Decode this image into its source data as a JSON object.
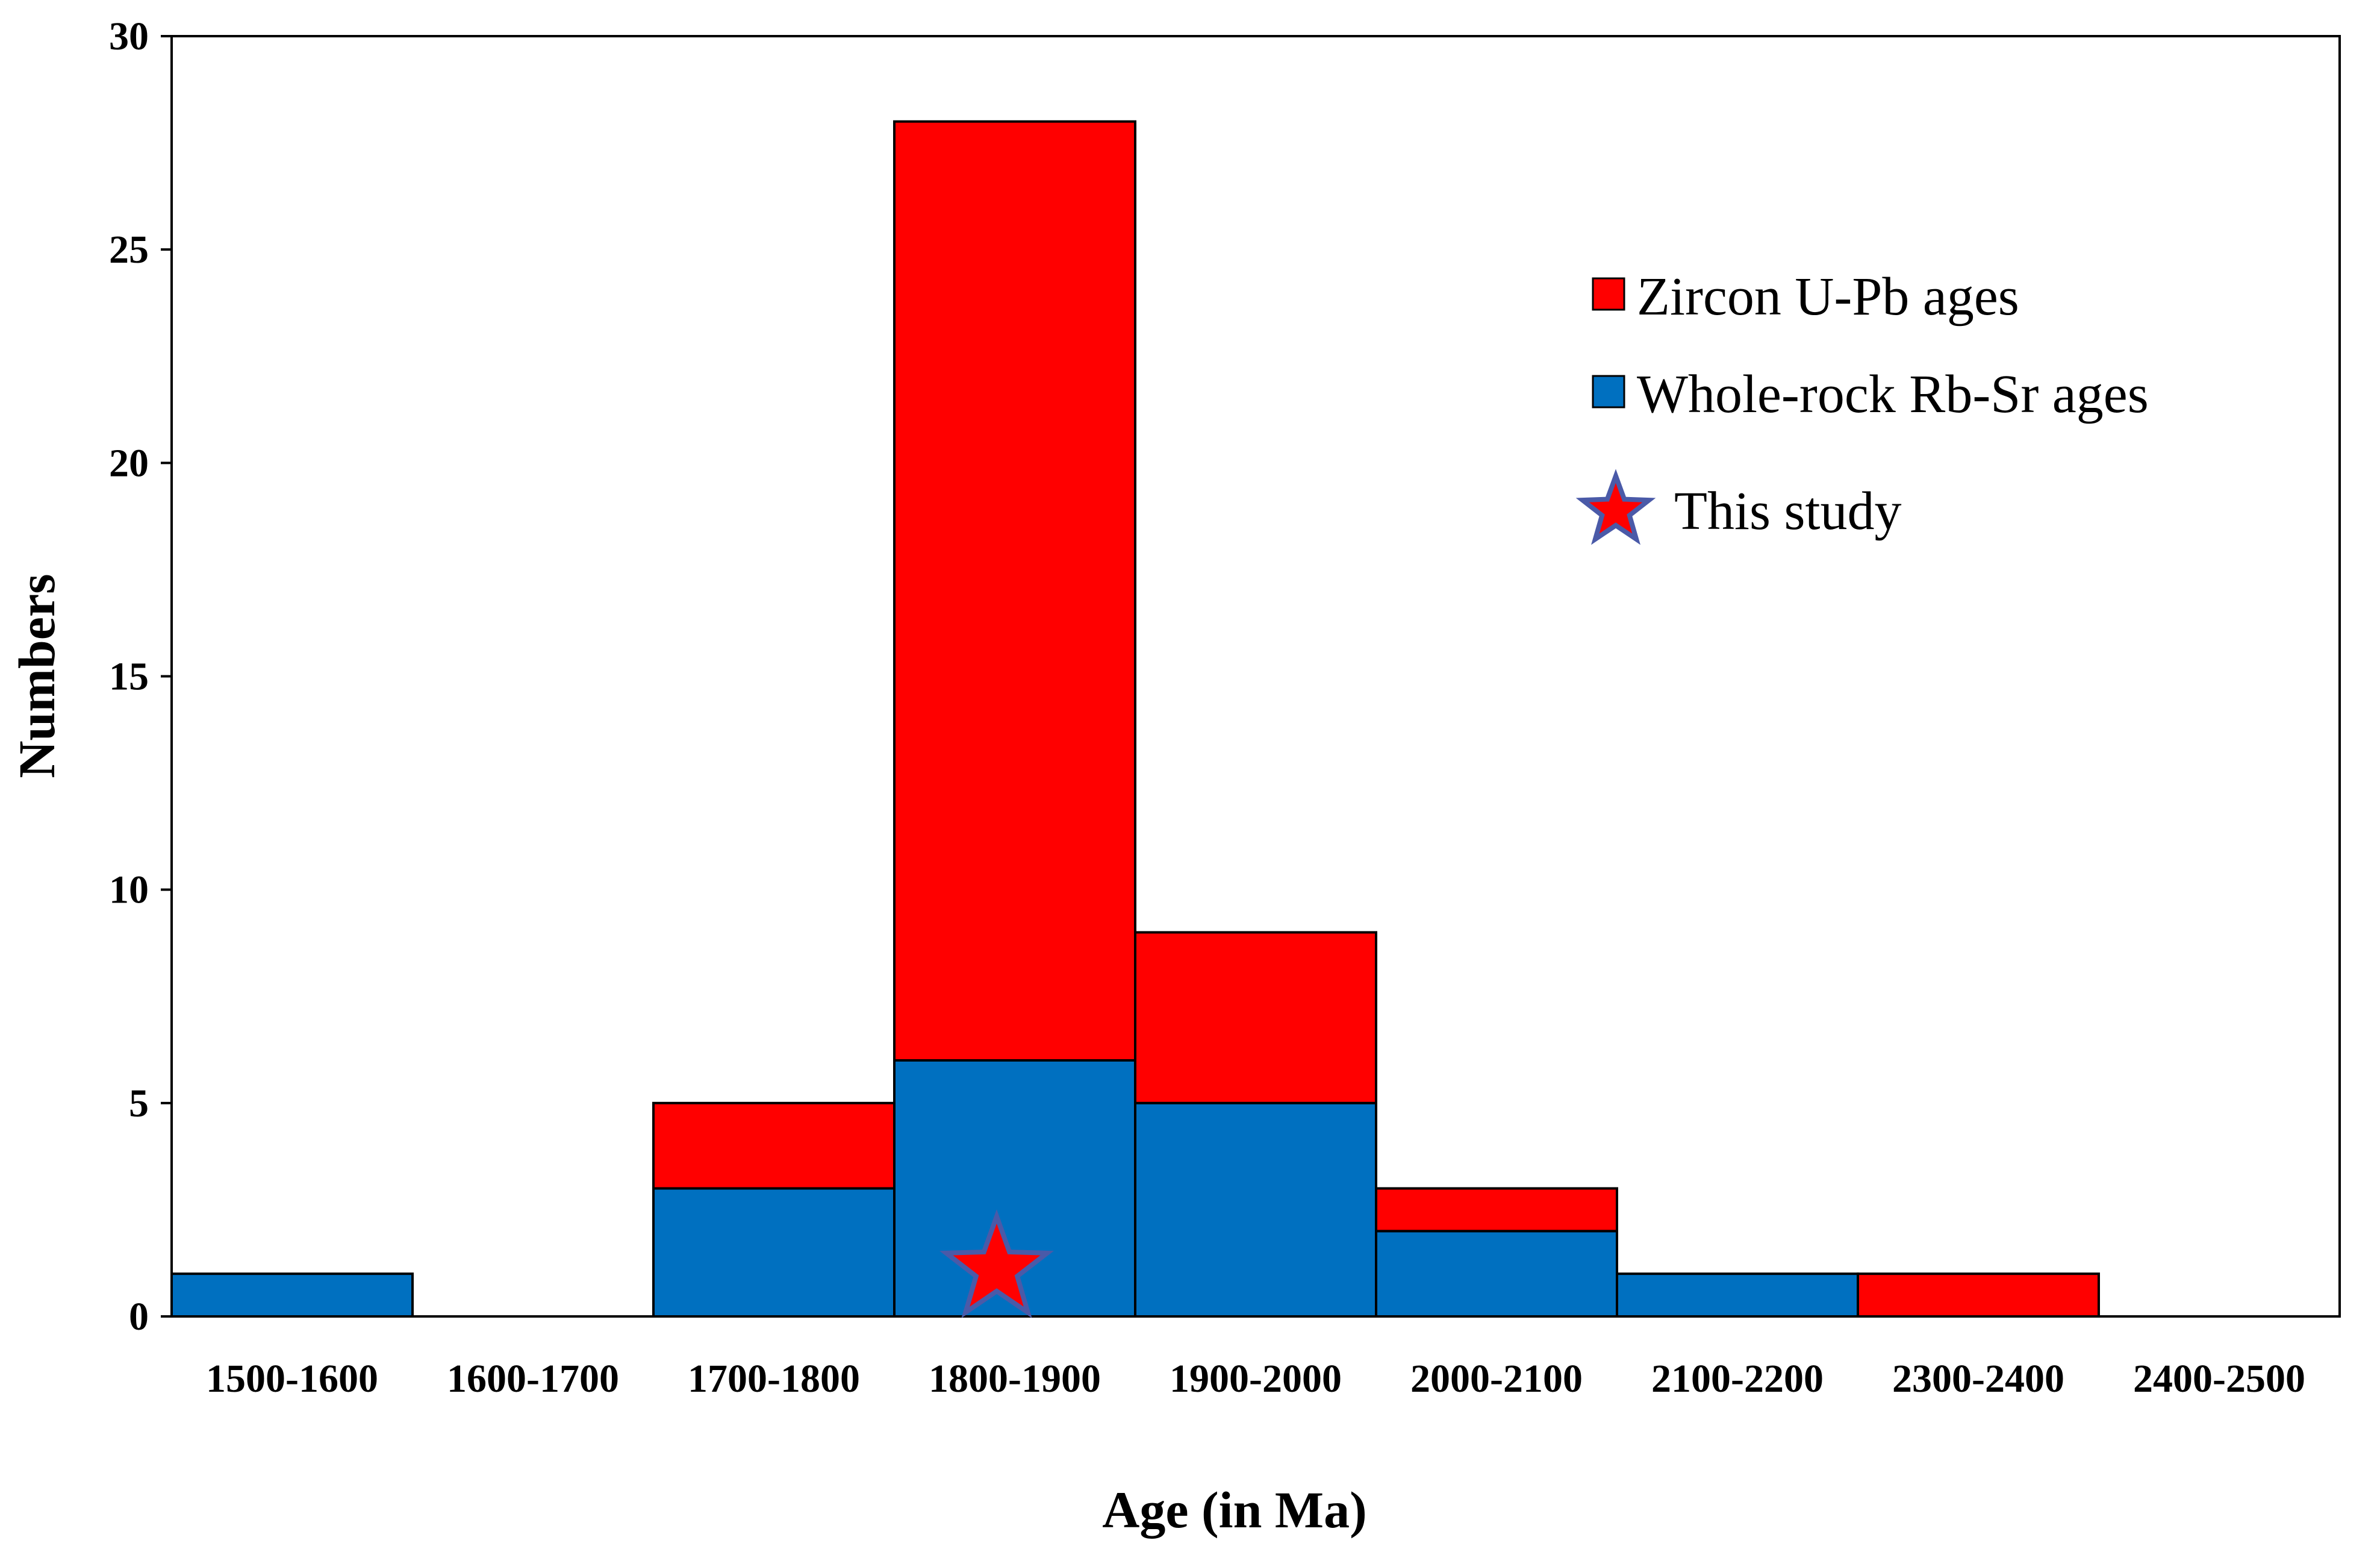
{
  "chart_data": {
    "type": "bar",
    "stacked": true,
    "categories": [
      "1500-1600",
      "1600-1700",
      "1700-1800",
      "1800-1900",
      "1900-2000",
      "2000-2100",
      "2100-2200",
      "2300-2400",
      "2400-2500"
    ],
    "series": [
      {
        "name": "Whole-rock Rb-Sr ages",
        "color": "#0070C0",
        "values": [
          1,
          0,
          3,
          6,
          5,
          2,
          1,
          0,
          0
        ]
      },
      {
        "name": "Zircon U-Pb ages",
        "color": "#FF0000",
        "values": [
          0,
          0,
          2,
          22,
          4,
          1,
          0,
          1,
          0
        ]
      }
    ],
    "legend_order": [
      "Zircon U-Pb ages",
      "Whole-rock Rb-Sr ages"
    ],
    "marker": {
      "label": "This study",
      "category": "1800-1900",
      "y": 1.1,
      "fill": "#FF0000",
      "stroke": "#4A5AA8"
    },
    "xlabel": "Age (in Ma)",
    "ylabel": "Numbers",
    "ylim": [
      0,
      30
    ],
    "yticks": [
      0,
      5,
      10,
      15,
      20,
      25,
      30
    ],
    "grid": false,
    "legend_position": "top-right"
  }
}
